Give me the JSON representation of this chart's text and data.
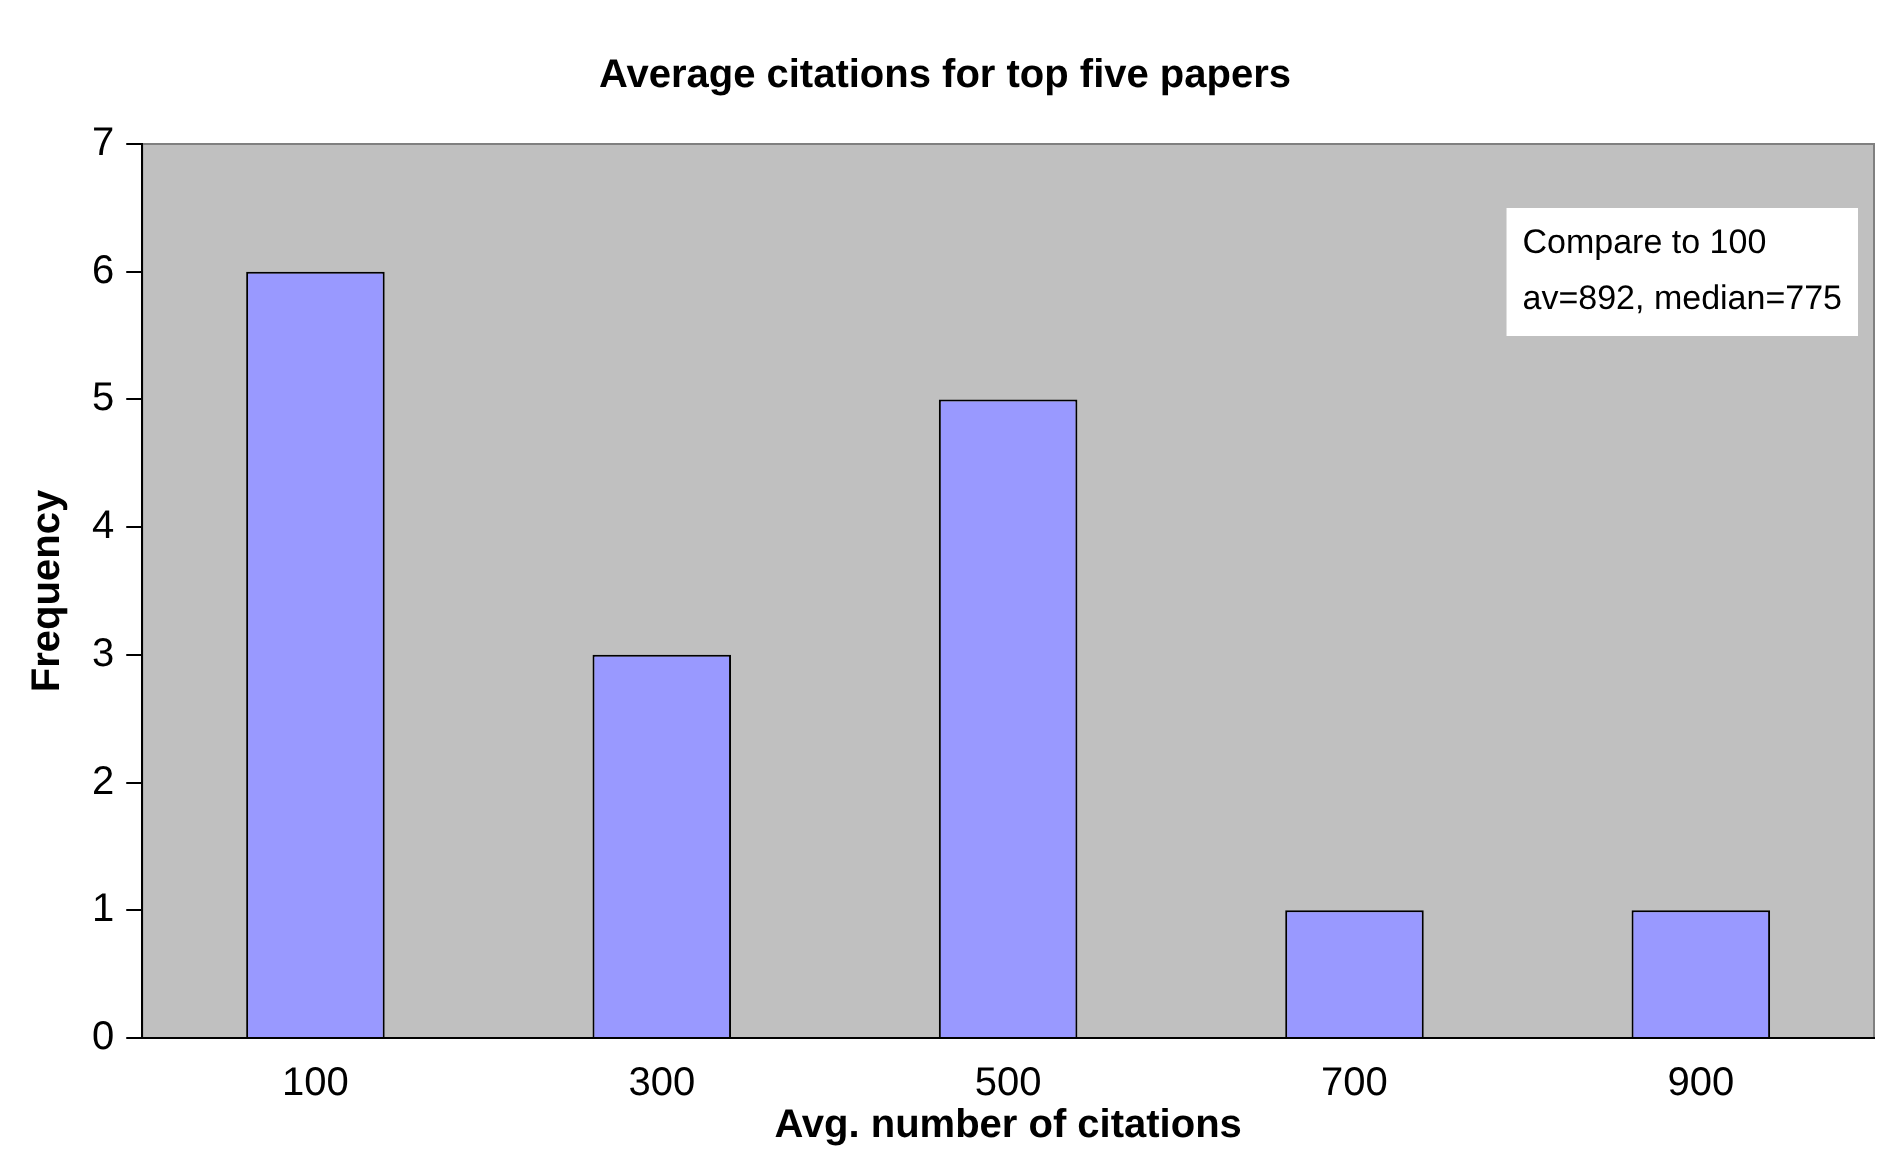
{
  "chart_data": {
    "type": "bar",
    "title": "Average citations for top five papers",
    "xlabel": "Avg. number of citations",
    "ylabel": "Frequency",
    "categories": [
      "100",
      "300",
      "500",
      "700",
      "900"
    ],
    "values": [
      6,
      3,
      5,
      1,
      1
    ],
    "color": "#9999ff",
    "ylim": [
      0,
      7
    ],
    "yticks": [
      0,
      1,
      2,
      3,
      4,
      5,
      6,
      7
    ],
    "grid": false,
    "legend": false,
    "annotations": [
      "Compare to 100\nav=892, median=775"
    ]
  }
}
